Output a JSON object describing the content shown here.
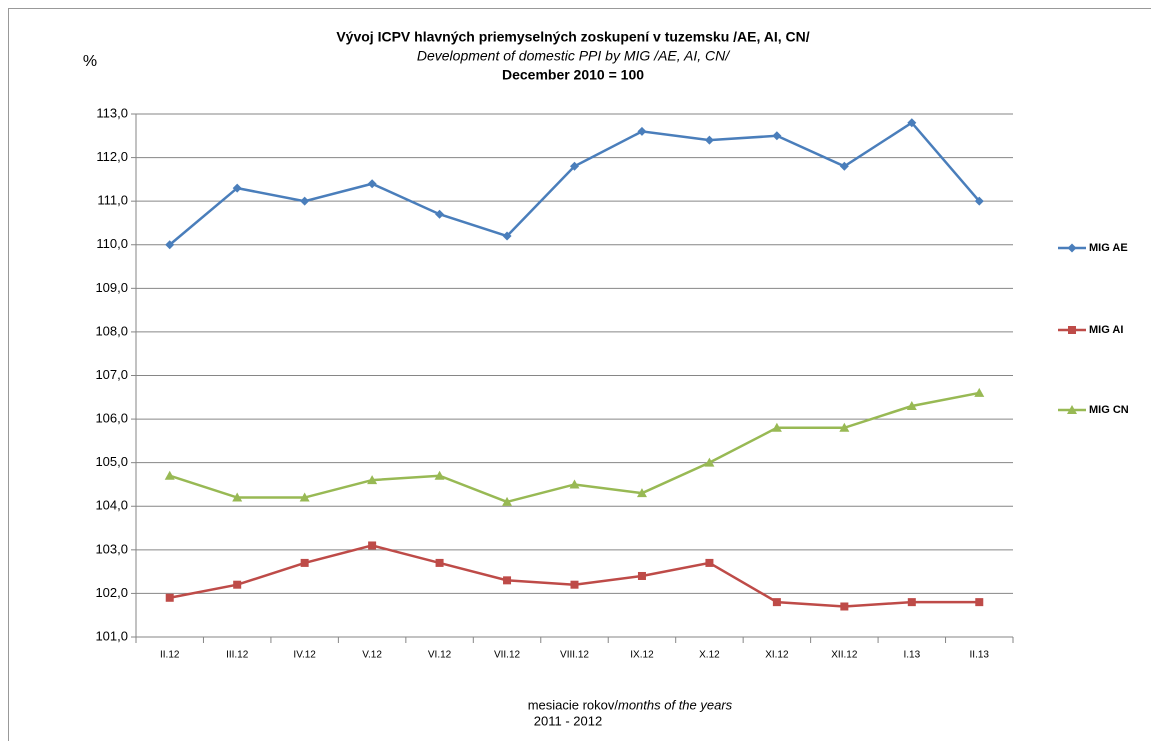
{
  "chart_data": {
    "type": "line",
    "title": "Vývoj ICPV hlavných priemyselných zoskupení v tuzemsku /AE, AI, CN/",
    "subtitle": "Development of domestic PPI by MIG /AE, AI, CN/",
    "subtitle2": "December 2010 = 100",
    "ylabel": "%",
    "xlabel": {
      "text": "mesiacie rokov/",
      "italic": "months of the years",
      "line2": "2011 - 2012"
    },
    "categories": [
      "II.12",
      "III.12",
      "IV.12",
      "V.12",
      "VI.12",
      "VII.12",
      "VIII.12",
      "IX.12",
      "X.12",
      "XI.12",
      "XII.12",
      "I.13",
      "II.13"
    ],
    "series": [
      {
        "name": "MIG AE",
        "color": "#4a7ebb",
        "marker": "diamond",
        "values": [
          110.0,
          111.3,
          111.0,
          111.4,
          110.7,
          110.2,
          111.8,
          112.6,
          112.4,
          112.5,
          111.8,
          112.8,
          111.0
        ]
      },
      {
        "name": "MIG AI",
        "color": "#be4b48",
        "marker": "square",
        "values": [
          101.9,
          102.2,
          102.7,
          103.1,
          102.7,
          102.3,
          102.2,
          102.4,
          102.7,
          101.8,
          101.7,
          101.8,
          101.8
        ]
      },
      {
        "name": "MIG CN",
        "color": "#98b954",
        "marker": "triangle",
        "values": [
          104.7,
          104.2,
          104.2,
          104.6,
          104.7,
          104.1,
          104.5,
          104.3,
          105.0,
          105.8,
          105.8,
          106.3,
          106.6
        ]
      }
    ],
    "ylim": [
      101,
      113
    ],
    "yticks": [
      {
        "value": 101,
        "label": "101,0"
      },
      {
        "value": 102,
        "label": "102,0"
      },
      {
        "value": 103,
        "label": "103,0"
      },
      {
        "value": 104,
        "label": "104,0"
      },
      {
        "value": 105,
        "label": "105,0"
      },
      {
        "value": 106,
        "label": "106,0"
      },
      {
        "value": 107,
        "label": "107,0"
      },
      {
        "value": 108,
        "label": "108,0"
      },
      {
        "value": 109,
        "label": "109,0"
      },
      {
        "value": 110,
        "label": "110,0"
      },
      {
        "value": 111,
        "label": "111,0"
      },
      {
        "value": 112,
        "label": "112,0"
      },
      {
        "value": 113,
        "label": "113,0"
      }
    ],
    "grid": true,
    "legend": "right"
  }
}
